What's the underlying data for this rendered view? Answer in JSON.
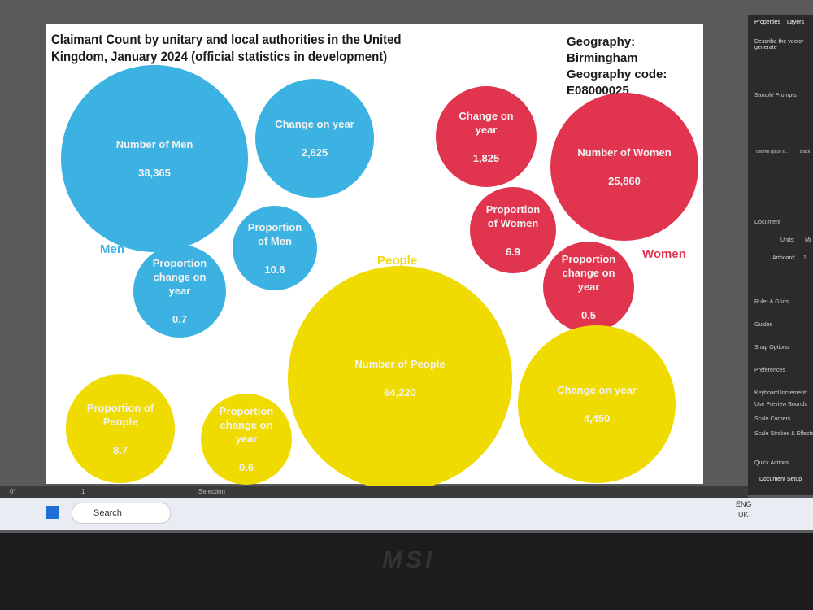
{
  "artboard": {
    "title": "Claimant Count by unitary and local authorities in the United Kingdom, January 2024 (official statistics in development)",
    "geography": "Geography:  Birmingham",
    "geography_code_label": "Geography code:",
    "geography_code": "E08000025",
    "groups": [
      {
        "label": "Men",
        "color": "#3cb2e2",
        "bubbles": [
          {
            "label": "Number of Men",
            "value": "38,365"
          },
          {
            "label": "Change on year",
            "value": "2,625"
          },
          {
            "label": "Proportion of Men",
            "value": "10.6"
          },
          {
            "label": "Proportion change on year",
            "value": "0.7"
          }
        ]
      },
      {
        "label": "Women",
        "color": "#e0344f",
        "bubbles": [
          {
            "label": "Change on year",
            "value": "1,825"
          },
          {
            "label": "Number of Women",
            "value": "25,860"
          },
          {
            "label": "Proportion of Women",
            "value": "6.9"
          },
          {
            "label": "Proportion change on year",
            "value": "0.5"
          }
        ]
      },
      {
        "label": "People",
        "color": "#f0db00",
        "bubbles": [
          {
            "label": "Number of People",
            "value": "64,220"
          },
          {
            "label": "Change on year",
            "value": "4,450"
          },
          {
            "label": "Proportion of People",
            "value": "8.7"
          },
          {
            "label": "Proportion change on year",
            "value": "0.6"
          }
        ]
      }
    ]
  },
  "panel": {
    "tabs": [
      "Properties",
      "Layers"
    ],
    "prompt": "Describe the vector generate",
    "sample_prompts": "Sample Prompts",
    "samples": [
      "colorful space s...",
      "Black"
    ],
    "document": "Document",
    "units_label": "Units:",
    "units": "Mi",
    "artboard_label": "Artboard:",
    "artboard": "1",
    "items": [
      "Ruler & Grids",
      "Guides",
      "Snap Options",
      "Preferences",
      "Keyboard Increment:"
    ],
    "checks": [
      "Use Preview Bounds",
      "Scale Corners",
      "Scale Strokes & Effects"
    ],
    "quick_actions": "Quick Actions",
    "document_setup": "Document Setup"
  },
  "status": {
    "angle": "0°",
    "page": "1",
    "tool": "Selection"
  },
  "taskbar": {
    "search": "Search",
    "lang": "ENG",
    "region": "UK"
  },
  "bezel": "MSI"
}
